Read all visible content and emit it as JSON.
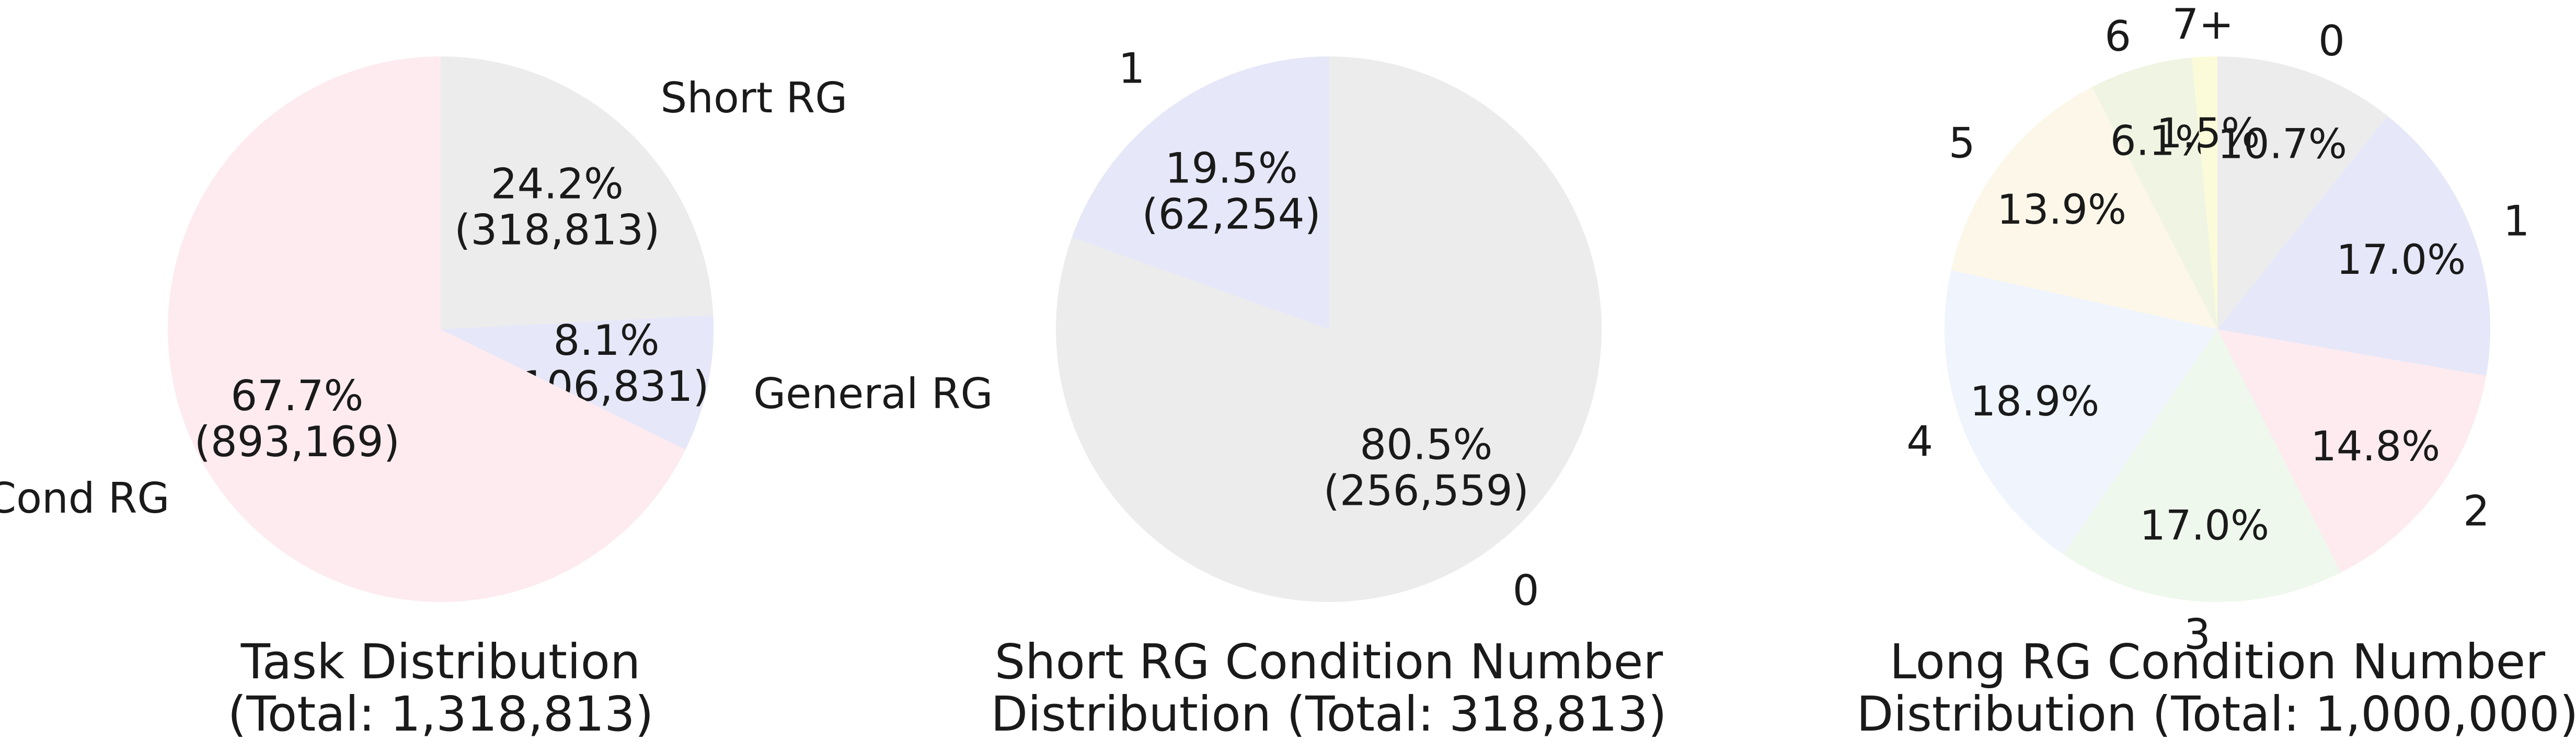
{
  "chart_data": [
    {
      "type": "pie",
      "title_lines": [
        "Task Distribution",
        "(Total: 1,318,813)"
      ],
      "start_angle_deg": 90,
      "direction": "clockwise",
      "slices": [
        {
          "label": "Short RG",
          "value": 318813,
          "pct": "24.2%",
          "count": "(318,813)",
          "color": "#ececec"
        },
        {
          "label": "General RG",
          "value": 106831,
          "pct": "8.1%",
          "count": "(106,831)",
          "color": "#e6e7f8"
        },
        {
          "label": "Cond RG",
          "value": 893169,
          "pct": "67.7%",
          "count": "(893,169)",
          "color": "#fdebf0"
        }
      ]
    },
    {
      "type": "pie",
      "title_lines": [
        "Short RG Condition Number",
        "Distribution (Total: 318,813)"
      ],
      "start_angle_deg": 90,
      "direction": "clockwise",
      "slices": [
        {
          "label": "0",
          "value": 256559,
          "pct": "80.5%",
          "count": "(256,559)",
          "color": "#ececec"
        },
        {
          "label": "1",
          "value": 62254,
          "pct": "19.5%",
          "count": "(62,254)",
          "color": "#e6e7f8"
        }
      ]
    },
    {
      "type": "pie",
      "title_lines": [
        "Long RG Condition Number",
        "Distribution (Total: 1,000,000)"
      ],
      "start_angle_deg": 90,
      "direction": "clockwise",
      "slices": [
        {
          "label": "0",
          "value": 10.7,
          "pct": "10.7%",
          "color": "#ececec"
        },
        {
          "label": "1",
          "value": 17.0,
          "pct": "17.0%",
          "color": "#e6e7f8"
        },
        {
          "label": "2",
          "value": 14.8,
          "pct": "14.8%",
          "color": "#fdebf0"
        },
        {
          "label": "3",
          "value": 17.0,
          "pct": "17.0%",
          "color": "#eef8ec"
        },
        {
          "label": "4",
          "value": 18.9,
          "pct": "18.9%",
          "color": "#eff4fd"
        },
        {
          "label": "5",
          "value": 13.9,
          "pct": "13.9%",
          "color": "#fdf7e9"
        },
        {
          "label": "6",
          "value": 6.1,
          "pct": "6.1%",
          "color": "#f0f4e2"
        },
        {
          "label": "7+",
          "value": 1.5,
          "pct": "1.5%",
          "color": "#fbfbd9"
        }
      ]
    }
  ]
}
